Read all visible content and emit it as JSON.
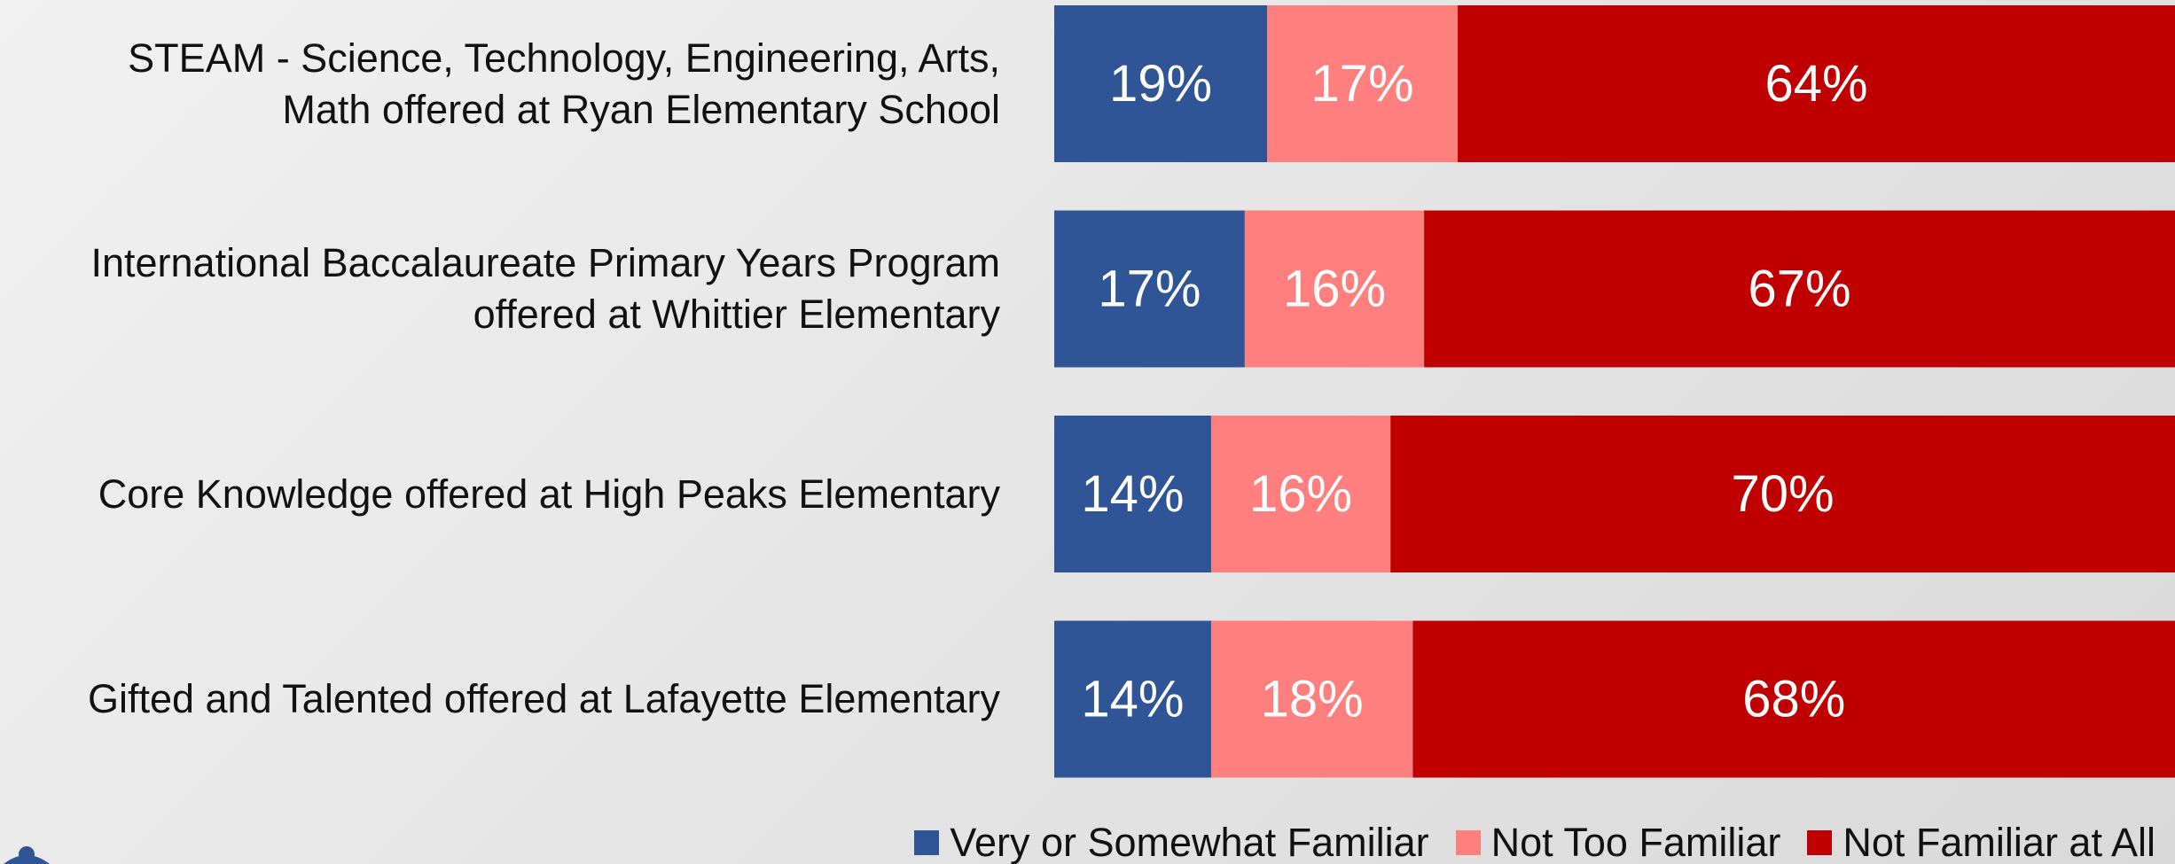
{
  "chart_data": {
    "type": "stacked_bar",
    "orientation": "horizontal",
    "categories": [
      "STEAM - Science, Technology, Engineering, Arts,\nMath offered at Ryan Elementary School",
      "International Baccalaureate Primary Years Program\noffered at Whittier Elementary",
      "Core Knowledge offered at High Peaks Elementary",
      "Gifted and Talented offered at Lafayette Elementary"
    ],
    "series": [
      {
        "name": "Very or Somewhat Familiar",
        "color": "#2f5597",
        "values": [
          19,
          17,
          14,
          14
        ],
        "value_labels": [
          "19%",
          "17%",
          "14%",
          "14%"
        ]
      },
      {
        "name": "Not Too Familiar",
        "color": "#ff7f7f",
        "values": [
          17,
          16,
          16,
          18
        ],
        "value_labels": [
          "17%",
          "16%",
          "16%",
          "18%"
        ]
      },
      {
        "name": "Not Familiar at All",
        "color": "#c00000",
        "values": [
          64,
          67,
          70,
          68
        ],
        "value_labels": [
          "64%",
          "67%",
          "70%",
          "68%"
        ]
      }
    ],
    "xlim": [
      0,
      100
    ],
    "legend": "bottom"
  }
}
